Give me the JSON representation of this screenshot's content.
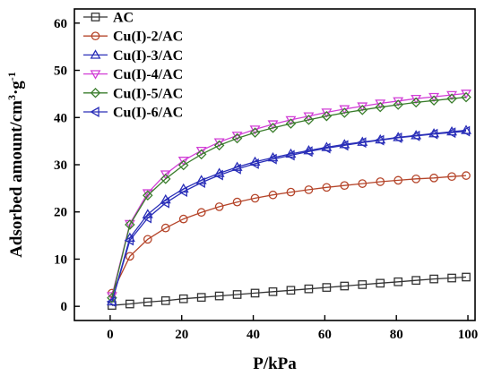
{
  "chart_data": {
    "type": "line",
    "xlabel": "P/kPa",
    "ylabel": "Adsorbed amount/cm³·g⁻¹",
    "ylabel_parts": {
      "main": "Adsorbed amount/cm",
      "exp1": "3",
      "mid": "·g",
      "exp2": "-1"
    },
    "xlim": [
      -10,
      102
    ],
    "ylim": [
      -3,
      63
    ],
    "x_ticks": [
      0,
      20,
      40,
      60,
      80,
      100
    ],
    "y_ticks": [
      0,
      10,
      20,
      30,
      40,
      50,
      60
    ],
    "grid": false,
    "legend_position": "top-left",
    "x": [
      0.5,
      5.5,
      10.5,
      15.5,
      20.5,
      25.5,
      30.5,
      35.5,
      40.5,
      45.5,
      50.5,
      55.5,
      60.5,
      65.5,
      70.5,
      75.5,
      80.5,
      85.5,
      90.5,
      95.5,
      99.5
    ],
    "series": [
      {
        "name": "AC",
        "marker": "square",
        "color": "#333333",
        "values": [
          0.2,
          0.5,
          0.9,
          1.2,
          1.6,
          1.9,
          2.2,
          2.5,
          2.8,
          3.1,
          3.4,
          3.7,
          4.0,
          4.3,
          4.6,
          4.9,
          5.2,
          5.5,
          5.8,
          6.0,
          6.2
        ]
      },
      {
        "name": "Cu(I)-2/AC",
        "marker": "circle",
        "color": "#b5452a",
        "values": [
          2.8,
          10.6,
          14.2,
          16.6,
          18.5,
          19.9,
          21.1,
          22.1,
          22.9,
          23.6,
          24.2,
          24.7,
          25.2,
          25.6,
          26.0,
          26.4,
          26.7,
          27.0,
          27.2,
          27.5,
          27.7
        ]
      },
      {
        "name": "Cu(I)-3/AC",
        "marker": "triangle-up",
        "color": "#2a2fb8",
        "values": [
          1.0,
          14.5,
          19.5,
          22.6,
          24.9,
          26.7,
          28.2,
          29.5,
          30.6,
          31.5,
          32.3,
          33.0,
          33.7,
          34.3,
          34.8,
          35.3,
          35.8,
          36.2,
          36.6,
          37.0,
          37.3
        ]
      },
      {
        "name": "Cu(I)-4/AC",
        "marker": "triangle-down",
        "color": "#d13fd6",
        "values": [
          2.2,
          17.5,
          24.0,
          28.0,
          30.9,
          33.0,
          34.8,
          36.2,
          37.5,
          38.6,
          39.5,
          40.3,
          41.1,
          41.8,
          42.4,
          43.0,
          43.5,
          44.0,
          44.4,
          44.8,
          45.1
        ]
      },
      {
        "name": "Cu(I)-5/AC",
        "marker": "diamond",
        "color": "#3a7d2c",
        "values": [
          1.8,
          17.3,
          23.5,
          27.0,
          29.9,
          32.2,
          34.1,
          35.6,
          36.8,
          37.8,
          38.7,
          39.5,
          40.3,
          41.0,
          41.6,
          42.2,
          42.7,
          43.2,
          43.6,
          44.0,
          44.3
        ]
      },
      {
        "name": "Cu(I)-6/AC",
        "marker": "triangle-left",
        "color": "#2a2fb8",
        "values": [
          1.0,
          14.0,
          18.7,
          21.9,
          24.3,
          26.2,
          27.8,
          29.1,
          30.2,
          31.2,
          32.0,
          32.8,
          33.5,
          34.1,
          34.7,
          35.2,
          35.7,
          36.1,
          36.5,
          36.8,
          37.1
        ]
      }
    ]
  }
}
